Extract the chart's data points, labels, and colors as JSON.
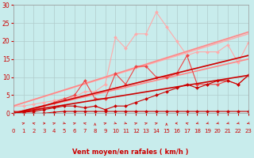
{
  "title": "",
  "xlabel": "Vent moyen/en rafales ( km/h )",
  "xlim": [
    0,
    23
  ],
  "ylim": [
    0,
    30
  ],
  "xticks": [
    0,
    1,
    2,
    3,
    4,
    5,
    6,
    7,
    8,
    9,
    10,
    11,
    12,
    13,
    14,
    15,
    16,
    17,
    18,
    19,
    20,
    21,
    22,
    23
  ],
  "yticks": [
    0,
    5,
    10,
    15,
    20,
    25,
    30
  ],
  "bg_color": "#c8ecec",
  "grid_color": "#b0cccc",
  "xlabel_color": "#cc0000",
  "tick_color": "#cc0000",
  "series": [
    {
      "x": [
        0,
        23
      ],
      "y": [
        2,
        22
      ],
      "color": "#ffaaaa",
      "lw": 1.0,
      "marker": null,
      "ms": 0
    },
    {
      "x": [
        0,
        23
      ],
      "y": [
        0,
        16
      ],
      "color": "#ffaaaa",
      "lw": 1.0,
      "marker": null,
      "ms": 0
    },
    {
      "x": [
        0,
        1,
        2,
        3,
        4,
        5,
        6,
        7,
        8,
        9,
        10,
        11,
        12,
        13,
        14,
        15,
        16,
        17,
        18,
        19,
        20,
        21,
        22,
        23
      ],
      "y": [
        2,
        2,
        2.5,
        3,
        3.5,
        4,
        4.5,
        6,
        6,
        8,
        21,
        18,
        22,
        22,
        28,
        24,
        20,
        16,
        17,
        17,
        17,
        19,
        14,
        19.5
      ],
      "color": "#ffaaaa",
      "lw": 0.8,
      "marker": "D",
      "ms": 2.0
    },
    {
      "x": [
        0,
        23
      ],
      "y": [
        2,
        22.5
      ],
      "color": "#ff8888",
      "lw": 1.2,
      "marker": null,
      "ms": 0
    },
    {
      "x": [
        0,
        23
      ],
      "y": [
        0,
        15
      ],
      "color": "#ff8888",
      "lw": 1.2,
      "marker": null,
      "ms": 0
    },
    {
      "x": [
        0,
        1,
        2,
        3,
        4,
        5,
        6,
        7,
        8,
        9,
        10,
        11,
        12,
        13,
        14,
        15,
        16,
        17,
        18,
        19,
        20,
        21,
        22,
        23
      ],
      "y": [
        0.5,
        0.5,
        1,
        2,
        3,
        4,
        5,
        9,
        4,
        4,
        11,
        8,
        13,
        13,
        10,
        10,
        11,
        16,
        8,
        8,
        8,
        9,
        8,
        10.5
      ],
      "color": "#ee4444",
      "lw": 0.8,
      "marker": "D",
      "ms": 2.0
    },
    {
      "x": [
        0,
        1,
        2,
        3,
        4,
        5,
        6,
        7,
        8,
        9,
        10,
        11,
        12,
        13,
        14,
        15,
        16,
        17,
        18,
        19,
        20,
        21,
        22,
        23
      ],
      "y": [
        0.3,
        0.3,
        0.5,
        1,
        1.5,
        2,
        2,
        1.5,
        2,
        1,
        2,
        2,
        3,
        4,
        5,
        6,
        7,
        8,
        7,
        8,
        9,
        9,
        8,
        10.5
      ],
      "color": "#cc0000",
      "lw": 0.8,
      "marker": "D",
      "ms": 2.0
    },
    {
      "x": [
        0,
        1,
        2,
        3,
        4,
        5,
        6,
        7,
        8,
        9,
        10,
        11,
        12,
        13,
        14,
        15,
        16,
        17,
        18,
        19,
        20,
        21,
        22,
        23
      ],
      "y": [
        0,
        0,
        0,
        0,
        0.3,
        0.5,
        0.5,
        0.5,
        0.5,
        0.5,
        0.5,
        0.5,
        0.5,
        0.5,
        0.5,
        0.5,
        0.5,
        0.5,
        0.5,
        0.5,
        0.5,
        0.5,
        0.5,
        0.5
      ],
      "color": "#cc0000",
      "lw": 0.8,
      "marker": "D",
      "ms": 2.0
    },
    {
      "x": [
        0,
        23
      ],
      "y": [
        0,
        10.5
      ],
      "color": "#cc0000",
      "lw": 1.2,
      "marker": null,
      "ms": 0
    },
    {
      "x": [
        0,
        23
      ],
      "y": [
        0,
        16
      ],
      "color": "#cc0000",
      "lw": 1.2,
      "marker": null,
      "ms": 0
    }
  ],
  "arrows": {
    "x": [
      1,
      2,
      3,
      4,
      5,
      6,
      7,
      8,
      9,
      10,
      11,
      12,
      13,
      14,
      15,
      16,
      17,
      18,
      19,
      20,
      21,
      22,
      23
    ],
    "angles": [
      45,
      315,
      90,
      45,
      135,
      45,
      315,
      0,
      45,
      135,
      135,
      45,
      45,
      45,
      0,
      270,
      315,
      225,
      225,
      225,
      225,
      225,
      225
    ],
    "color": "#cc2222"
  }
}
